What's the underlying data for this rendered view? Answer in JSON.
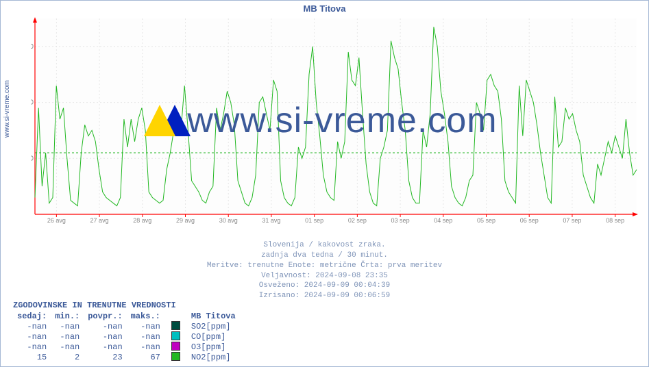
{
  "title": "MB Titova",
  "ylabel_site": "www.si-vreme.com",
  "watermark_text": "www.si-vreme.com",
  "chart": {
    "type": "line",
    "background_color": "#ffffff",
    "plot_bg": "#fdfdfd",
    "axis_color": "#ff0000",
    "grid_color": "#e6e6e6",
    "grid_dash": "2,3",
    "hline_value": 22,
    "hline_color": "#00aa00",
    "hline_dash": "3,3",
    "line_color": "#22b822",
    "line_width": 1,
    "ylim": [
      0,
      70
    ],
    "yticks": [
      20,
      40,
      60
    ],
    "x_categories": [
      "26 avg",
      "27 avg",
      "28 avg",
      "29 avg",
      "30 avg",
      "31 avg",
      "01 sep",
      "02 sep",
      "03 sep",
      "04 sep",
      "05 sep",
      "06 sep",
      "07 sep",
      "08 sep"
    ],
    "series_NO2": [
      6,
      38,
      10,
      22,
      4,
      6,
      46,
      34,
      38,
      20,
      5,
      4,
      3,
      22,
      32,
      28,
      30,
      26,
      16,
      8,
      6,
      5,
      4,
      3,
      6,
      34,
      24,
      34,
      26,
      34,
      38,
      30,
      8,
      6,
      5,
      4,
      5,
      16,
      22,
      30,
      34,
      30,
      46,
      30,
      12,
      10,
      8,
      5,
      4,
      8,
      10,
      38,
      30,
      36,
      44,
      40,
      32,
      12,
      8,
      4,
      3,
      6,
      14,
      40,
      42,
      36,
      30,
      48,
      44,
      12,
      6,
      4,
      3,
      6,
      24,
      20,
      24,
      50,
      60,
      40,
      28,
      14,
      8,
      6,
      5,
      26,
      20,
      26,
      58,
      48,
      46,
      56,
      36,
      18,
      8,
      4,
      3,
      20,
      24,
      30,
      62,
      56,
      52,
      40,
      30,
      12,
      6,
      4,
      4,
      30,
      24,
      36,
      67,
      60,
      44,
      36,
      26,
      10,
      6,
      4,
      3,
      6,
      12,
      14,
      40,
      36,
      30,
      48,
      50,
      46,
      44,
      34,
      12,
      8,
      6,
      4,
      46,
      28,
      48,
      44,
      40,
      32,
      22,
      14,
      6,
      4,
      42,
      24,
      26,
      38,
      34,
      36,
      30,
      26,
      14,
      10,
      6,
      4,
      18,
      14,
      20,
      26,
      22,
      28,
      24,
      20,
      34,
      22,
      14,
      16
    ]
  },
  "caption": {
    "line1": "Slovenija / kakovost zraka.",
    "line2": "zadnja dva tedna / 30 minut.",
    "line3": "Meritve: trenutne  Enote: metrične  Črta: prva meritev",
    "line4": "Veljavnost: 2024-09-08 23:35",
    "line5": "Osveženo: 2024-09-09 00:04:39",
    "line6": "Izrisano: 2024-09-09 00:06:59"
  },
  "table": {
    "title": "ZGODOVINSKE IN TRENUTNE VREDNOSTI",
    "columns": [
      "sedaj:",
      "min.:",
      "povpr.:",
      "maks.:"
    ],
    "series_header": "MB Titova",
    "rows": [
      {
        "values": [
          "-nan",
          "-nan",
          "-nan",
          "-nan"
        ],
        "swatch": "#004d40",
        "label": "SO2[ppm]"
      },
      {
        "values": [
          "-nan",
          "-nan",
          "-nan",
          "-nan"
        ],
        "swatch": "#00c0c0",
        "label": "CO[ppm]"
      },
      {
        "values": [
          "-nan",
          "-nan",
          "-nan",
          "-nan"
        ],
        "swatch": "#c000c0",
        "label": "O3[ppm]"
      },
      {
        "values": [
          "15",
          "2",
          "23",
          "67"
        ],
        "swatch": "#22b822",
        "label": "NO2[ppm]"
      }
    ]
  }
}
